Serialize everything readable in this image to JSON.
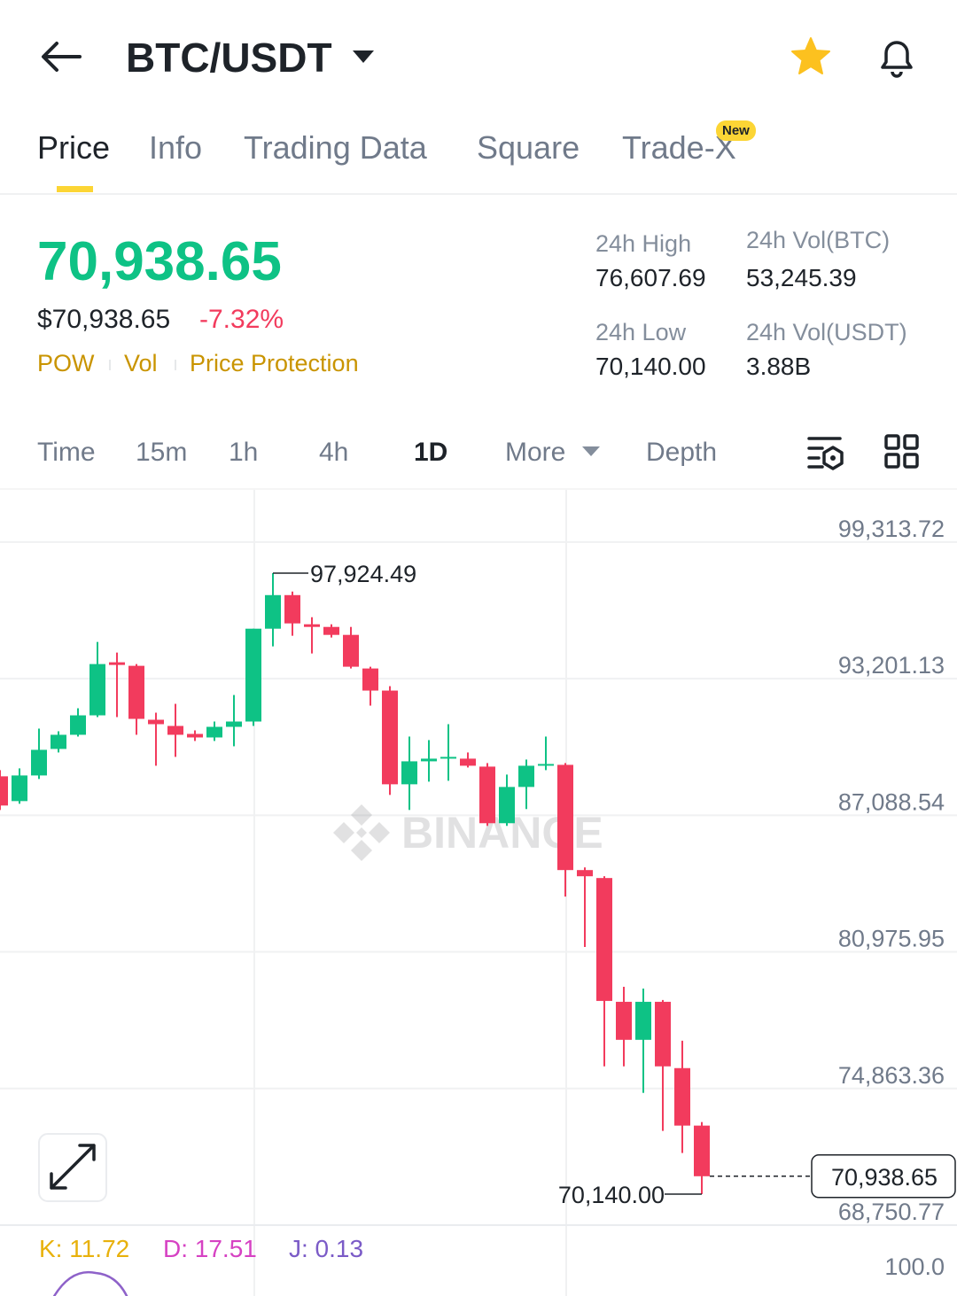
{
  "header": {
    "pair": "BTC/USDT"
  },
  "tabs": [
    "Price",
    "Info",
    "Trading Data",
    "Square",
    "Trade-X"
  ],
  "badge": "New",
  "price": {
    "last": "70,938.65",
    "fiat": "$70,938.65",
    "change": "-7.32%",
    "tags": [
      "POW",
      "Vol",
      "Price Protection"
    ]
  },
  "stats": [
    {
      "label": "24h High",
      "value": "76,607.69"
    },
    {
      "label": "24h Vol(BTC)",
      "value": "53,245.39"
    },
    {
      "label": "24h Low",
      "value": "70,140.00"
    },
    {
      "label": "24h Vol(USDT)",
      "value": "3.88B"
    }
  ],
  "intervals": [
    "Time",
    "15m",
    "1h",
    "4h",
    "1D",
    "More",
    "Depth"
  ],
  "chart_data": {
    "type": "candlestick",
    "watermark": "BINANCE",
    "up_color": "#0ec285",
    "down_color": "#f23b5d",
    "open": [
      88831,
      87723,
      88870,
      90057,
      90690,
      91560,
      93934,
      93776,
      91362,
      91086,
      90729,
      90571,
      91046,
      91283,
      95437,
      96940,
      95635,
      95516,
      95160,
      93657,
      92668,
      88475,
      89503,
      89622,
      89622,
      89266,
      86734,
      88356,
      89305,
      89345,
      84637,
      84281,
      78743,
      77042,
      78743,
      75776,
      73204
    ],
    "high": [
      89108,
      89187,
      90967,
      90848,
      91877,
      94844,
      94369,
      93855,
      91679,
      92075,
      90888,
      91283,
      92470,
      95437,
      97924.49,
      97099,
      95951,
      95635,
      95516,
      93736,
      92866,
      90611,
      90453,
      91165,
      89899,
      89424,
      88910,
      89582,
      90611,
      89424,
      84756,
      84360,
      79415,
      79336,
      78822,
      77002,
      73363
    ],
    "low": [
      87327,
      87604,
      88712,
      89899,
      90611,
      91481,
      91481,
      90690,
      89305,
      89701,
      90413,
      90413,
      90176,
      91086,
      94646,
      95121,
      94329,
      95042,
      93657,
      91995,
      88000,
      87327,
      88593,
      88633,
      89226,
      86615,
      86615,
      87367,
      89108,
      83450,
      81196,
      75855,
      75855,
      74668,
      72967,
      71978,
      70140.0
    ],
    "close": [
      87525,
      88870,
      90017,
      90690,
      91560,
      93855,
      93815,
      91402,
      91165,
      90690,
      90571,
      91046,
      91283,
      95437,
      96940,
      95674,
      95516,
      95160,
      93736,
      92668,
      88475,
      89503,
      89622,
      89701,
      89305,
      86734,
      88356,
      89305,
      89384,
      84637,
      84360,
      78782,
      77042,
      78743,
      75855,
      73204,
      70938.65
    ],
    "ylim": [
      68750.77,
      101648
    ],
    "yticks": [
      {
        "value": 99313.72,
        "label": "99,313.72"
      },
      {
        "value": 93201.13,
        "label": "93,201.13"
      },
      {
        "value": 87088.54,
        "label": "87,088.54"
      },
      {
        "value": 80975.95,
        "label": "80,975.95"
      },
      {
        "value": 74863.36,
        "label": "74,863.36"
      },
      {
        "value": 68750.77,
        "label": "68,750.77"
      }
    ],
    "high_label": "97,924.49",
    "low_label": "70,140.00",
    "last_label": "70,938.65"
  },
  "indicator": {
    "k": "K: 11.72",
    "d": "D: 17.51",
    "j": "J: 0.13",
    "top_label": "100.0"
  }
}
